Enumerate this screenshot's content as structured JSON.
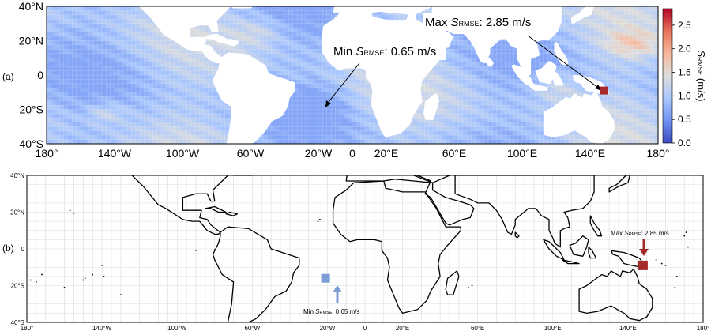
{
  "panel_a": {
    "label": "(a)",
    "lat_ticks": [
      "40°N",
      "20°N",
      "0",
      "20°S",
      "40°S"
    ],
    "lon_ticks": [
      "180°",
      "140°W",
      "100°W",
      "60°W",
      "20°W",
      "0",
      "20°E",
      "60°E",
      "100°E",
      "140°E",
      "180°"
    ],
    "min_annotation": {
      "prefix": "Min ",
      "symbol": "S",
      "subscript": "RMSE",
      "suffix": ": 0.65 m/s"
    },
    "max_annotation": {
      "prefix": "Max ",
      "symbol": "S",
      "subscript": "RMSE",
      "suffix": ": 2.85 m/s"
    },
    "colorbar": {
      "ticks": [
        "0.0",
        "0.5",
        "1.0",
        "1.5",
        "2.0",
        "2.5"
      ],
      "label_symbol": "S",
      "label_subscript": "RMSE",
      "label_suffix": " (m/s)",
      "range": [
        0,
        2.85
      ],
      "colors": [
        "#3b4cc0",
        "#6f92f3",
        "#aac7fd",
        "#dddddd",
        "#f7b89c",
        "#e7745b",
        "#b40426"
      ]
    }
  },
  "panel_b": {
    "label": "(b)",
    "lat_ticks": [
      "40°N",
      "20°N",
      "0",
      "20°S",
      "40°S"
    ],
    "lon_ticks": [
      "180°",
      "140°W",
      "100°W",
      "60°W",
      "20°W",
      "0",
      "20°E",
      "60°E",
      "100°E",
      "140°E",
      "180°"
    ],
    "min_annotation": {
      "prefix": "Min ",
      "symbol": "S",
      "subscript": "RMSE",
      "suffix": ": 0.65 m/s"
    },
    "max_annotation": {
      "prefix": "Max ",
      "symbol": "S",
      "subscript": "RMSE",
      "suffix": ": 2.85 m/s"
    }
  },
  "markers": {
    "min": {
      "lon": -21,
      "lat": -16,
      "value": 0.65,
      "color": "#7d9dd6"
    },
    "max": {
      "lon": 148,
      "lat": -9,
      "value": 2.85,
      "color": "#a52a2a"
    }
  },
  "colors": {
    "ocean_low": "#3b4cc0",
    "ocean_high": "#b40426",
    "land": "#ffffff",
    "coast": "#000000",
    "grid": "#dcdcdc"
  }
}
